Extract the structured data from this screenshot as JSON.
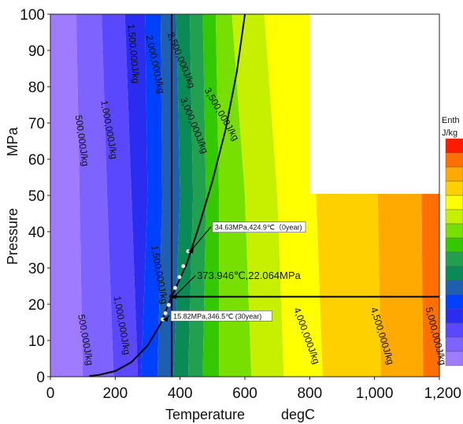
{
  "chart_data": {
    "type": "heatmap",
    "xlabel": "Temperature",
    "xunit": "degC",
    "ylabel": "Pressure",
    "yunit": "MPa",
    "xlim": [
      0,
      1200
    ],
    "ylim": [
      0,
      100
    ],
    "x_ticks": [
      "0",
      "200",
      "400",
      "600",
      "800",
      "1,000",
      "1,200"
    ],
    "x_tick_values": [
      0,
      200,
      400,
      600,
      800,
      1000,
      1200
    ],
    "y_ticks": [
      "0",
      "10",
      "20",
      "30",
      "40",
      "50",
      "60",
      "70",
      "80",
      "90",
      "100"
    ],
    "y_tick_values": [
      0,
      10,
      20,
      30,
      40,
      50,
      60,
      70,
      80,
      90,
      100
    ],
    "legend": {
      "title_line1": "Enth",
      "title_line2": "J/kg",
      "placement": "right"
    },
    "colors": [
      "#9f7bff",
      "#7e63ff",
      "#5a48ff",
      "#2a2df0",
      "#0040ff",
      "#1e5fb0",
      "#0a8a55",
      "#22a050",
      "#33c800",
      "#77e000",
      "#c6f000",
      "#ffff00",
      "#ffd000",
      "#ffaa00",
      "#ff7000",
      "#ff1a00"
    ],
    "contour_labels": [
      {
        "text": "500,000J/kg",
        "x": 88,
        "y": 65,
        "angle": 82
      },
      {
        "text": "1,000,000J/kg",
        "x": 172,
        "y": 68,
        "angle": 80
      },
      {
        "text": "1,500,000J/kg",
        "x": 247,
        "y": 89,
        "angle": 85
      },
      {
        "text": "2,000,000J/kg",
        "x": 314,
        "y": 86,
        "angle": 78
      },
      {
        "text": "2,500,000J/kg",
        "x": 395,
        "y": 87,
        "angle": 68
      },
      {
        "text": "3,000,000J/kg",
        "x": 435,
        "y": 69,
        "angle": 68
      },
      {
        "text": "3,500,000J/kg",
        "x": 520,
        "y": 72,
        "angle": 60
      },
      {
        "text": "500,000J/kg",
        "x": 99,
        "y": 10,
        "angle": 80
      },
      {
        "text": "1,000,000J/kg",
        "x": 212,
        "y": 14,
        "angle": 80
      },
      {
        "text": "1,500,000J/kg",
        "x": 327,
        "y": 28,
        "angle": 80
      },
      {
        "text": "4,000,000J/kg",
        "x": 782,
        "y": 11,
        "angle": 70
      },
      {
        "text": "4,500,000J/kg",
        "x": 1015,
        "y": 11,
        "angle": 73
      },
      {
        "text": "5,000,000J/kg",
        "x": 1180,
        "y": 11,
        "angle": 76
      }
    ],
    "boiling_curve": [
      [
        120,
        0.2
      ],
      [
        150,
        0.5
      ],
      [
        200,
        1.55
      ],
      [
        250,
        4.0
      ],
      [
        300,
        8.6
      ],
      [
        340,
        14.6
      ],
      [
        373.946,
        22.064
      ],
      [
        420,
        31
      ],
      [
        460,
        42
      ],
      [
        500,
        54
      ],
      [
        540,
        68
      ],
      [
        575,
        84
      ],
      [
        600,
        100
      ]
    ],
    "vertical_line_x": 373.946,
    "horizontal_line_y": 22.064,
    "trajectory": [
      [
        346.5,
        15.82
      ],
      [
        355,
        17.5
      ],
      [
        365,
        19.8
      ],
      [
        374,
        22
      ],
      [
        385,
        24.5
      ],
      [
        398,
        27.5
      ],
      [
        410,
        30.5
      ],
      [
        424.9,
        34.63
      ]
    ],
    "annotations": [
      {
        "text": "34.63MPa,424.9℃（0year)",
        "x": 424.9,
        "y": 34.63,
        "label_x": 500,
        "label_y": 40.5,
        "size": "small"
      },
      {
        "text": "373.946℃,22.064MPa",
        "x": 373.946,
        "y": 22.064,
        "label_x": 452,
        "label_y": 27,
        "size": "big"
      },
      {
        "text": "15.82MPa,346.5℃ (30year)",
        "x": 346.5,
        "y": 15.82,
        "label_x": 372,
        "label_y": 16,
        "size": "small"
      }
    ]
  }
}
